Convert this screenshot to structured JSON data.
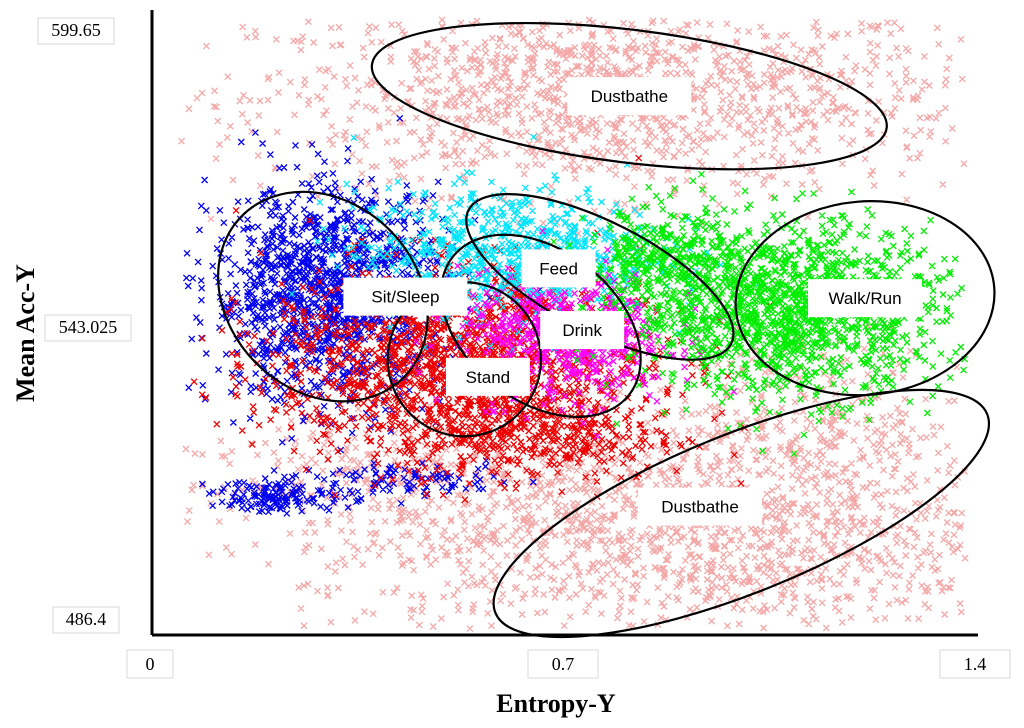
{
  "chart_data": {
    "type": "scatter",
    "title": "",
    "xlabel": "Entropy-Y",
    "ylabel": "Mean Acc-Y",
    "xlim": [
      0,
      1.4
    ],
    "ylim": [
      486.4,
      599.65
    ],
    "x_ticks": [
      "0",
      "0.7",
      "1.4"
    ],
    "y_ticks": [
      "599.65",
      "543.025",
      "486.4"
    ],
    "legend": "none",
    "marker": "x",
    "series": [
      {
        "color": "#f4a7a7",
        "label": "Dustbathe",
        "clouds": [
          {
            "cx": 0.78,
            "cy": 587,
            "sx": 0.3,
            "sy": 9,
            "n": 1500
          },
          {
            "cx": 0.9,
            "cy": 504,
            "sx": 0.32,
            "sy": 10,
            "n": 1500
          },
          {
            "cx": 1.1,
            "cy": 525,
            "sx": 0.15,
            "sy": 8,
            "n": 350
          },
          {
            "cx": 0.45,
            "cy": 516,
            "sx": 0.2,
            "sy": 5,
            "n": 300
          }
        ]
      },
      {
        "color": "#0000ee",
        "label": "Sit/Sleep",
        "clouds": [
          {
            "cx": 0.3,
            "cy": 550,
            "sx": 0.1,
            "sy": 10,
            "n": 1300
          },
          {
            "cx": 0.22,
            "cy": 512,
            "sx": 0.06,
            "sy": 1.5,
            "n": 150
          },
          {
            "cx": 0.45,
            "cy": 515,
            "sx": 0.08,
            "sy": 1.5,
            "n": 90
          }
        ]
      },
      {
        "color": "#ee0000",
        "label": "Stand",
        "clouds": [
          {
            "cx": 0.52,
            "cy": 537,
            "sx": 0.16,
            "sy": 9,
            "n": 1600
          },
          {
            "cx": 0.66,
            "cy": 523,
            "sx": 0.12,
            "sy": 4,
            "n": 300
          }
        ]
      },
      {
        "color": "#00e5ff",
        "label": "Feed",
        "clouds": [
          {
            "cx": 0.6,
            "cy": 558,
            "sx": 0.13,
            "sy": 6,
            "n": 700
          }
        ]
      },
      {
        "color": "#ff00ff",
        "label": "Drink",
        "clouds": [
          {
            "cx": 0.7,
            "cy": 542,
            "sx": 0.09,
            "sy": 6,
            "n": 600
          }
        ]
      },
      {
        "color": "#00ee00",
        "label": "Walk/Run",
        "clouds": [
          {
            "cx": 1.08,
            "cy": 547,
            "sx": 0.13,
            "sy": 8,
            "n": 1500
          },
          {
            "cx": 0.86,
            "cy": 556,
            "sx": 0.06,
            "sy": 5,
            "n": 300
          }
        ]
      }
    ],
    "annotations": [
      {
        "text": "Dustbathe",
        "x": 0.81,
        "y": 587.2,
        "rx": 0.44,
        "ry": 12.5,
        "rot": 7
      },
      {
        "text": "Sit/Sleep",
        "x": 0.29,
        "y": 549.5,
        "rx": 0.16,
        "ry": 21.5,
        "rot": -45
      },
      {
        "text": "Feed",
        "x": 0.76,
        "y": 553.2,
        "rx": 0.25,
        "ry": 10.3,
        "rot": 27
      },
      {
        "text": "Drink",
        "x": 0.66,
        "y": 544.0,
        "rx": 0.19,
        "ry": 14.2,
        "rot": 38
      },
      {
        "text": "Stand",
        "x": 0.53,
        "y": 537.7,
        "rx": 0.13,
        "ry": 14.5,
        "rot": -8
      },
      {
        "text": "Walk/Run",
        "x": 1.21,
        "y": 549.2,
        "rx": 0.22,
        "ry": 18.2,
        "rot": -5
      },
      {
        "text": "Dustbathe",
        "x": 1.0,
        "y": 508.7,
        "rx": 0.45,
        "ry": 14.9,
        "rot": -22
      }
    ]
  },
  "labels": {
    "Dustbathe": "Dustbathe",
    "Sit/Sleep": "Sit/Sleep",
    "Feed": "Feed",
    "Drink": "Drink",
    "Stand": "Stand",
    "Walk/Run": "Walk/Run"
  }
}
